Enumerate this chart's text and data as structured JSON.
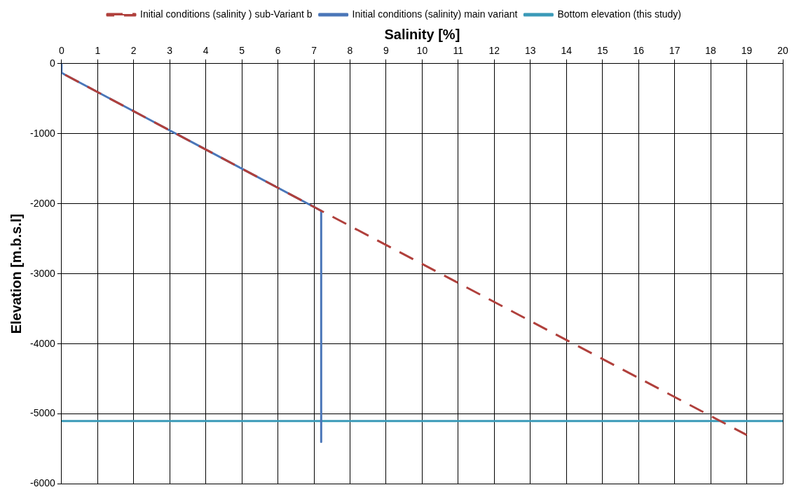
{
  "chart_data": {
    "type": "line",
    "xlabel": "Salinity [%]",
    "ylabel": "Elevation [m.b.s.l]",
    "xlim": [
      0,
      20
    ],
    "xticks": [
      0,
      1,
      2,
      3,
      4,
      5,
      6,
      7,
      8,
      9,
      10,
      11,
      12,
      13,
      14,
      15,
      16,
      17,
      18,
      19,
      20
    ],
    "ylim": [
      -6000,
      0
    ],
    "yticks": [
      -6000,
      -5000,
      -4000,
      -3000,
      -2000,
      -1000,
      0
    ],
    "grid": true,
    "legend": "top",
    "marker": "none",
    "series": [
      {
        "name": "Initial conditions (salinity) main variant",
        "color": "#4a76b8",
        "x": [
          0,
          0,
          0.1,
          7.2,
          7.2
        ],
        "values": [
          0,
          -130,
          -160,
          -2100,
          -5400
        ]
      },
      {
        "name": "Initial conditions (salinity ) sub-Variant b",
        "color": "#b0403c",
        "line_style": "dashed",
        "x": [
          0.1,
          7.2,
          19
        ],
        "values": [
          -160,
          -2100,
          -5300
        ]
      },
      {
        "name": "Bottom elevation (this study)",
        "color": "#3a9ab8",
        "x": [
          0,
          20
        ],
        "values": [
          -5100,
          -5100
        ]
      }
    ]
  }
}
